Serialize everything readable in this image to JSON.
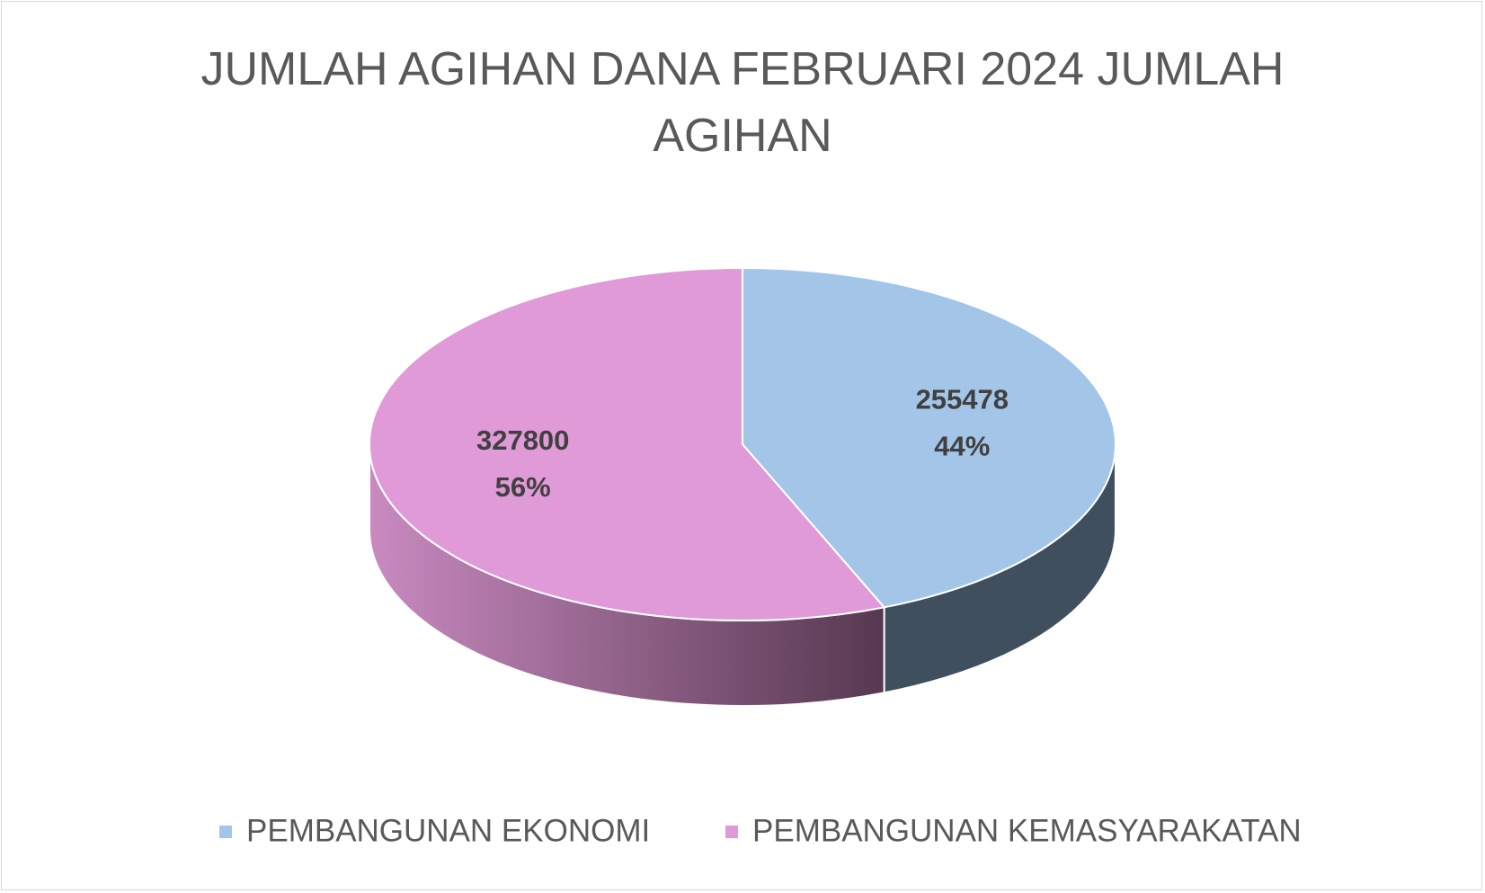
{
  "chart_data": {
    "type": "pie3d",
    "title": "JUMLAH AGIHAN DANA FEBRUARI 2024 JUMLAH AGIHAN",
    "categories": [
      "PEMBANGUNAN EKONOMI",
      "PEMBANGUNAN KEMASYARAKATAN"
    ],
    "values": [
      255478,
      327800
    ],
    "percents": [
      44,
      56
    ],
    "percent_labels": [
      "44%",
      "56%"
    ],
    "colors": [
      "#a3c6e8",
      "#e09ad8"
    ],
    "legend": "bottom"
  }
}
